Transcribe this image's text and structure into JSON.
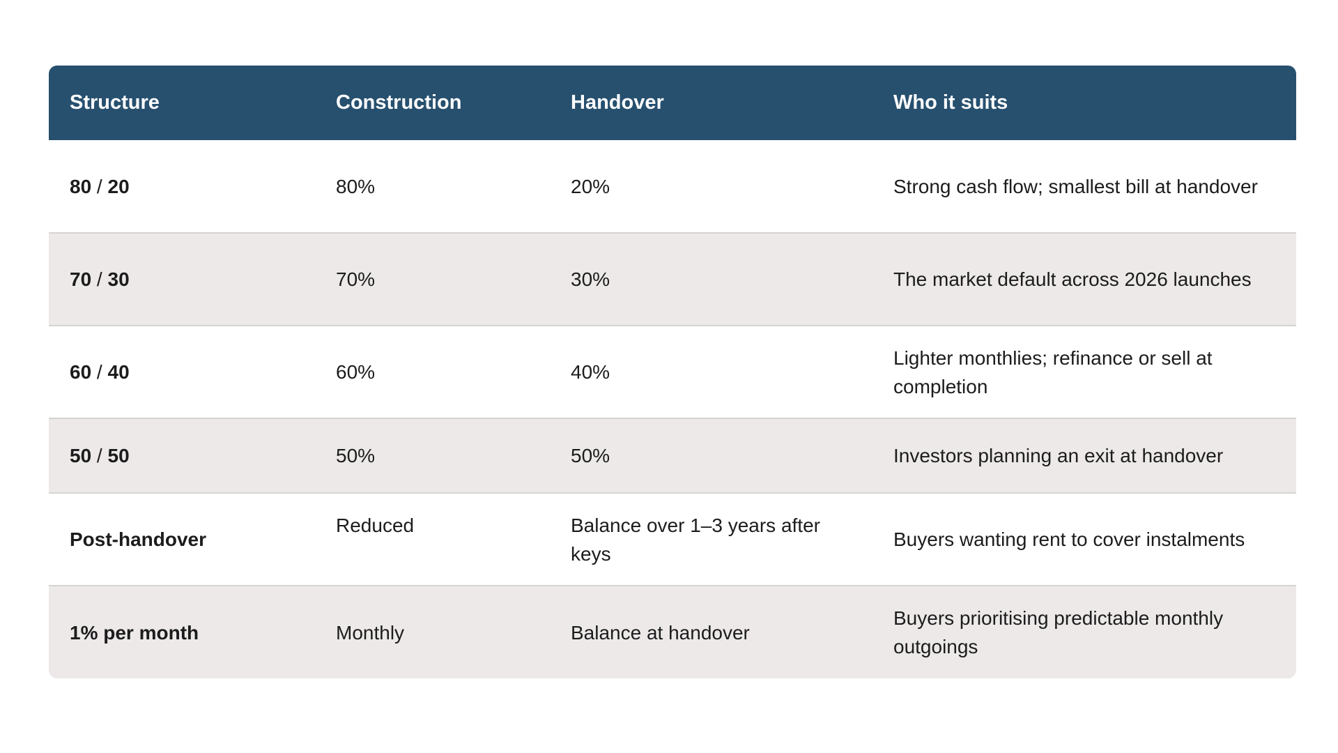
{
  "table": {
    "headers": [
      "Structure",
      "Construction",
      "Handover",
      "Who it suits"
    ],
    "rows": [
      {
        "structure_a": "80",
        "structure_sep": " / ",
        "structure_b": "20",
        "construction": "80%",
        "handover": "20%",
        "suits": "Strong cash flow; smallest bill at handover"
      },
      {
        "structure_a": "70",
        "structure_sep": " / ",
        "structure_b": "30",
        "construction": "70%",
        "handover": "30%",
        "suits": "The market default across 2026 launches"
      },
      {
        "structure_a": "60",
        "structure_sep": " / ",
        "structure_b": "40",
        "construction": "60%",
        "handover": "40%",
        "suits": "Lighter monthlies; refinance or sell at completion"
      },
      {
        "structure_a": "50",
        "structure_sep": " / ",
        "structure_b": "50",
        "construction": "50%",
        "handover": "50%",
        "suits": "Investors planning an exit at handover"
      },
      {
        "structure": "Post-handover",
        "construction": "Reduced",
        "handover": "Balance over 1–3 years after keys",
        "suits": "Buyers wanting rent to cover instalments"
      },
      {
        "structure": "1% per month",
        "construction": "Monthly",
        "handover": "Balance at handover",
        "suits": "Buyers prioritising predictable monthly outgoings"
      }
    ]
  },
  "colors": {
    "header_bg": "#27506f",
    "header_text": "#ffffff",
    "row_alt_bg": "#ede9e9",
    "row_border": "#d6d3d3"
  }
}
